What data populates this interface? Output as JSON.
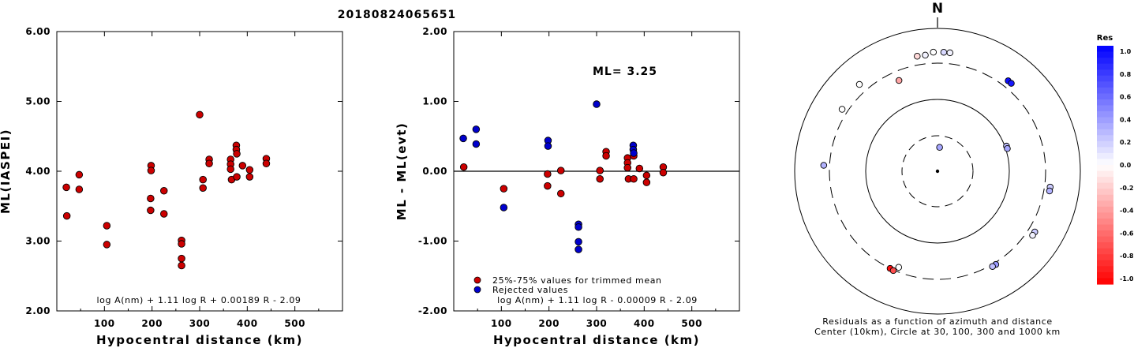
{
  "title": "20180824065651",
  "left_plot": {
    "chart_data": {
      "type": "scatter",
      "xlabel": "Hypocentral distance (km)",
      "ylabel": "ML(IASPEI)",
      "xlim": [
        0,
        600
      ],
      "ylim": [
        2.0,
        6.0
      ],
      "xticks": [
        "100",
        "200",
        "300",
        "400",
        "500"
      ],
      "yticks": [
        "2.00",
        "3.00",
        "4.00",
        "5.00",
        "6.00"
      ],
      "formula": "log A(nm) + 1.11 log R + 0.00189 R - 2.09",
      "marker_color": "#cc0000",
      "points": [
        [
          20,
          3.77
        ],
        [
          21,
          3.36
        ],
        [
          47,
          3.95
        ],
        [
          47,
          3.74
        ],
        [
          105,
          3.22
        ],
        [
          105,
          2.95
        ],
        [
          198,
          4.08
        ],
        [
          198,
          4.01
        ],
        [
          197,
          3.61
        ],
        [
          197,
          3.44
        ],
        [
          225,
          3.72
        ],
        [
          225,
          3.39
        ],
        [
          262,
          3.01
        ],
        [
          262,
          2.96
        ],
        [
          262,
          2.75
        ],
        [
          262,
          2.65
        ],
        [
          300,
          4.81
        ],
        [
          307,
          3.88
        ],
        [
          307,
          3.76
        ],
        [
          320,
          4.17
        ],
        [
          320,
          4.11
        ],
        [
          365,
          4.17
        ],
        [
          365,
          4.1
        ],
        [
          365,
          4.03
        ],
        [
          367,
          3.88
        ],
        [
          377,
          4.37
        ],
        [
          377,
          4.31
        ],
        [
          378,
          4.25
        ],
        [
          378,
          3.92
        ],
        [
          390,
          4.08
        ],
        [
          405,
          4.02
        ],
        [
          405,
          3.92
        ],
        [
          440,
          4.18
        ],
        [
          440,
          4.11
        ]
      ]
    }
  },
  "middle_plot": {
    "chart_data": {
      "type": "scatter",
      "xlabel": "Hypocentral distance (km)",
      "ylabel": "ML - ML(evt)",
      "xlim": [
        0,
        600
      ],
      "ylim": [
        -2.0,
        2.0
      ],
      "xticks": [
        "100",
        "200",
        "300",
        "400",
        "500"
      ],
      "yticks": [
        "-2.00",
        "-1.00",
        "0.00",
        "1.00",
        "2.00"
      ],
      "ml_label": "ML= 3.25",
      "formula": "log A(nm) + 1.11 log R - 0.00009 R - 2.09",
      "legend": [
        {
          "label": "25%-75% values for trimmed mean",
          "color": "#cc0000"
        },
        {
          "label": "Rejected values",
          "color": "#0000cc"
        }
      ],
      "series": [
        {
          "color": "#cc0000",
          "points": [
            [
              21,
              0.06
            ],
            [
              105,
              -0.25
            ],
            [
              197,
              -0.04
            ],
            [
              197,
              -0.21
            ],
            [
              225,
              0.01
            ],
            [
              225,
              -0.32
            ],
            [
              307,
              0.01
            ],
            [
              307,
              -0.11
            ],
            [
              320,
              0.28
            ],
            [
              320,
              0.22
            ],
            [
              365,
              0.19
            ],
            [
              365,
              0.12
            ],
            [
              365,
              0.05
            ],
            [
              367,
              -0.11
            ],
            [
              378,
              0.22
            ],
            [
              378,
              -0.11
            ],
            [
              390,
              0.04
            ],
            [
              405,
              -0.06
            ],
            [
              405,
              -0.16
            ],
            [
              440,
              0.06
            ],
            [
              440,
              -0.02
            ]
          ]
        },
        {
          "color": "#0000cc",
          "points": [
            [
              20,
              0.47
            ],
            [
              47,
              0.6
            ],
            [
              47,
              0.39
            ],
            [
              105,
              -0.52
            ],
            [
              198,
              0.44
            ],
            [
              198,
              0.36
            ],
            [
              262,
              -0.76
            ],
            [
              262,
              -0.8
            ],
            [
              262,
              -1.01
            ],
            [
              262,
              -1.12
            ],
            [
              300,
              0.96
            ],
            [
              377,
              0.37
            ],
            [
              377,
              0.31
            ],
            [
              378,
              0.26
            ]
          ]
        }
      ]
    }
  },
  "polar_plot": {
    "north_label": "N",
    "caption_line1": "Residuals as a function of azimuth and distance",
    "caption_line2": "Center (10km), Circle at 30, 100, 300 and 1000 km",
    "chart_data": {
      "type": "scatter",
      "note_units": "azimuth degrees, distance km",
      "points": [
        {
          "az": 3,
          "dist": 440,
          "res": 0.15
        },
        {
          "az": 358,
          "dist": 440,
          "res": 0.0
        },
        {
          "az": 6,
          "dist": 440,
          "res": 0.05
        },
        {
          "az": 354,
          "dist": 405,
          "res": 0.05
        },
        {
          "az": 350,
          "dist": 405,
          "res": -0.15
        },
        {
          "az": 38,
          "dist": 378,
          "res": 0.95
        },
        {
          "az": 40,
          "dist": 378,
          "res": 0.9
        },
        {
          "az": 318,
          "dist": 405,
          "res": 0.0
        },
        {
          "az": 303,
          "dist": 365,
          "res": 0.0
        },
        {
          "az": 337,
          "dist": 225,
          "res": -0.35
        },
        {
          "az": 5,
          "dist": 21,
          "res": 0.35
        },
        {
          "az": 70,
          "dist": 105,
          "res": 0.25
        },
        {
          "az": 72,
          "dist": 105,
          "res": 0.35
        },
        {
          "az": 273,
          "dist": 367,
          "res": 0.3
        },
        {
          "az": 98,
          "dist": 365,
          "res": 0.2
        },
        {
          "az": 100,
          "dist": 365,
          "res": 0.3
        },
        {
          "az": 122,
          "dist": 377,
          "res": 0.2
        },
        {
          "az": 124,
          "dist": 377,
          "res": 0.05
        },
        {
          "az": 148,
          "dist": 320,
          "res": 0.4
        },
        {
          "az": 150,
          "dist": 320,
          "res": 0.25
        },
        {
          "az": 206,
          "dist": 300,
          "res": -0.95
        },
        {
          "az": 204,
          "dist": 307,
          "res": -0.7
        },
        {
          "az": 202,
          "dist": 262,
          "res": 0.0
        }
      ]
    },
    "colorbar": {
      "title": "Res",
      "labels": [
        "1.0",
        "0.8",
        "0.6",
        "0.4",
        "0.2",
        "0.0",
        "-0.2",
        "-0.4",
        "-0.6",
        "-0.8",
        "-1.0"
      ]
    }
  }
}
